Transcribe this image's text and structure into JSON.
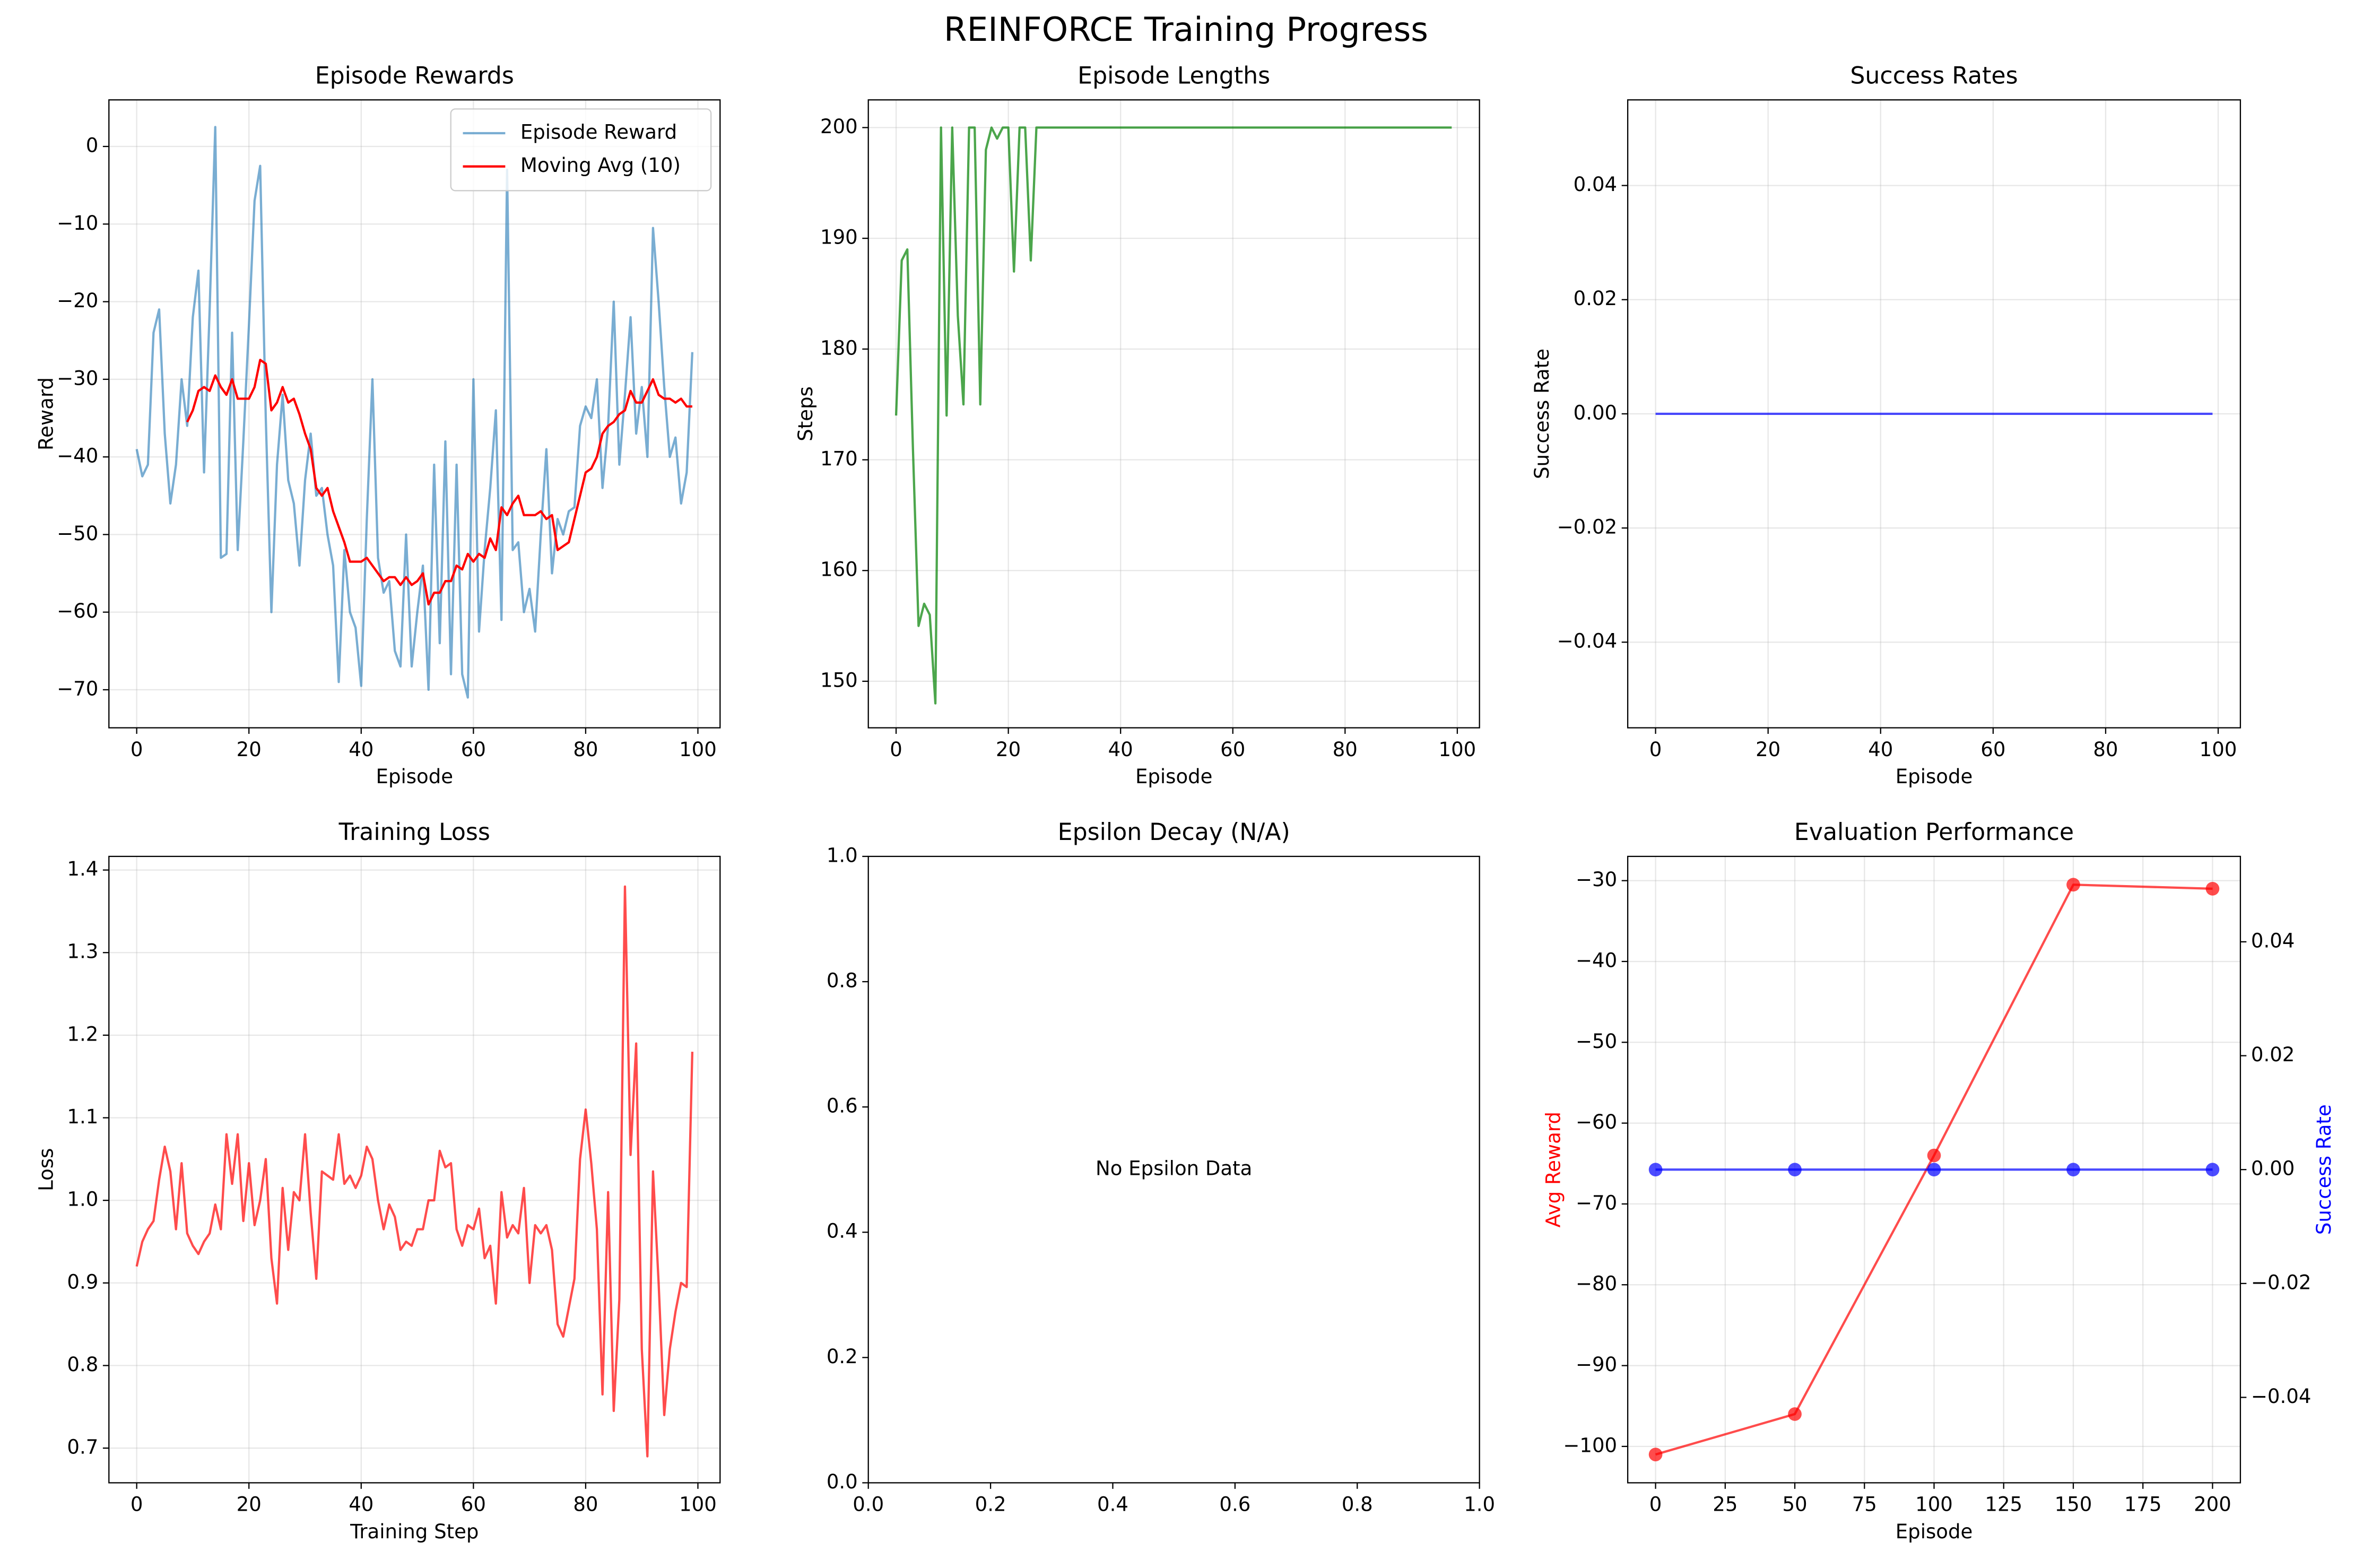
{
  "title": "REINFORCE Training Progress",
  "chart_data": [
    {
      "type": "line",
      "title": "Episode Rewards",
      "xlabel": "Episode",
      "ylabel": "Reward",
      "x": [
        0,
        1,
        2,
        3,
        4,
        5,
        6,
        7,
        8,
        9,
        10,
        11,
        12,
        13,
        14,
        15,
        16,
        17,
        18,
        19,
        20,
        21,
        22,
        23,
        24,
        25,
        26,
        27,
        28,
        29,
        30,
        31,
        32,
        33,
        34,
        35,
        36,
        37,
        38,
        39,
        40,
        41,
        42,
        43,
        44,
        45,
        46,
        47,
        48,
        49,
        50,
        51,
        52,
        53,
        54,
        55,
        56,
        57,
        58,
        59,
        60,
        61,
        62,
        63,
        64,
        65,
        66,
        67,
        68,
        69,
        70,
        71,
        72,
        73,
        74,
        75,
        76,
        77,
        78,
        79,
        80,
        81,
        82,
        83,
        84,
        85,
        86,
        87,
        88,
        89,
        90,
        91,
        92,
        93,
        94,
        95,
        96,
        97,
        98,
        99
      ],
      "series": [
        {
          "name": "Episode Reward",
          "color": "#1f77b4",
          "alpha": 0.6,
          "values": [
            -39,
            -42.5,
            -41,
            -24,
            -21,
            -37,
            -46,
            -41,
            -30,
            -36,
            -22,
            -16,
            -42,
            -21,
            2.5,
            -53,
            -52.5,
            -24,
            -52,
            -38,
            -23,
            -7,
            -2.5,
            -35,
            -60,
            -41,
            -32,
            -43,
            -46,
            -54,
            -43,
            -37,
            -45,
            -44,
            -50,
            -54,
            -69,
            -52,
            -60,
            -62,
            -69.5,
            -48,
            -30,
            -53,
            -57.5,
            -56,
            -65,
            -67,
            -50,
            -67,
            -60,
            -54,
            -70,
            -41,
            -64,
            -38,
            -68,
            -41,
            -68,
            -71,
            -30,
            -62.5,
            -52,
            -44,
            -34,
            -61,
            -3,
            -52,
            -51,
            -60,
            -57,
            -62.5,
            -50,
            -39,
            -55,
            -48,
            -50,
            -47,
            -46.5,
            -36,
            -33.5,
            -35,
            -30,
            -44,
            -36,
            -20,
            -41,
            -32,
            -22,
            -37,
            -31,
            -40,
            -10.5,
            -20,
            -31,
            -40,
            -37.5,
            -46,
            -42,
            -26.5
          ]
        },
        {
          "name": "Moving Avg (10)",
          "color": "red",
          "alpha": 1,
          "values": [
            null,
            null,
            null,
            null,
            null,
            null,
            null,
            null,
            null,
            -35.5,
            -34,
            -31.5,
            -31,
            -31.5,
            -29.5,
            -31,
            -32,
            -30,
            -32.5,
            -32.5,
            -32.5,
            -31,
            -27.5,
            -28,
            -34,
            -33,
            -31,
            -33,
            -32.5,
            -34.5,
            -37,
            -39,
            -44,
            -45,
            -44,
            -47,
            -49,
            -51,
            -53.5,
            -53.5,
            -53.5,
            -53,
            -54,
            -55,
            -56,
            -55.5,
            -55.5,
            -56.5,
            -55.5,
            -56.5,
            -56,
            -55,
            -59,
            -57.5,
            -57.5,
            -56,
            -56,
            -54,
            -54.5,
            -52.5,
            -53.5,
            -52.5,
            -53,
            -50.5,
            -52,
            -46.5,
            -47.5,
            -46,
            -45,
            -47.5,
            -47.5,
            -47.5,
            -47,
            -48,
            -47.5,
            -52,
            -51.5,
            -51,
            -48,
            -45,
            -42,
            -41.5,
            -40,
            -37,
            -36,
            -35.5,
            -34.5,
            -34,
            -31.5,
            -33,
            -33,
            -31.5,
            -30,
            -32,
            -32.5,
            -32.5,
            -33,
            -32.5,
            -33.5,
            -33.5
          ]
        }
      ],
      "xlim": [
        -4.95,
        103.95
      ],
      "ylim": [
        -74.9,
        6.0
      ],
      "xticks": [
        0,
        20,
        40,
        60,
        80,
        100
      ],
      "yticks": [
        {
          "value": -70,
          "label": "−70"
        },
        {
          "value": -60,
          "label": "−60"
        },
        {
          "value": -50,
          "label": "−50"
        },
        {
          "value": -40,
          "label": "−40"
        },
        {
          "value": -30,
          "label": "−30"
        },
        {
          "value": -20,
          "label": "−20"
        },
        {
          "value": -10,
          "label": "−10"
        },
        0
      ],
      "grid": true,
      "legend": "upper right"
    },
    {
      "type": "line",
      "title": "Episode Lengths",
      "xlabel": "Episode",
      "ylabel": "Steps",
      "x": [
        0,
        1,
        2,
        3,
        4,
        5,
        6,
        7,
        8,
        9,
        10,
        11,
        12,
        13,
        14,
        15,
        16,
        17,
        18,
        19,
        20,
        21,
        22,
        23,
        24,
        25,
        26,
        27,
        28,
        29,
        30,
        31,
        32,
        33,
        34,
        35,
        36,
        37,
        38,
        39,
        40,
        41,
        42,
        43,
        44,
        45,
        46,
        47,
        48,
        49,
        50,
        51,
        52,
        53,
        54,
        55,
        56,
        57,
        58,
        59,
        60,
        61,
        62,
        63,
        64,
        65,
        66,
        67,
        68,
        69,
        70,
        71,
        72,
        73,
        74,
        75,
        76,
        77,
        78,
        79,
        80,
        81,
        82,
        83,
        84,
        85,
        86,
        87,
        88,
        89,
        90,
        91,
        92,
        93,
        94,
        95,
        96,
        97,
        98,
        99
      ],
      "series": [
        {
          "color": "green",
          "alpha": 0.7,
          "values": [
            174,
            188,
            189,
            171,
            155,
            157,
            156,
            148,
            200,
            174,
            200,
            183,
            175,
            200,
            200,
            175,
            198,
            200,
            199,
            200,
            200,
            187,
            200,
            200,
            188,
            200,
            200,
            200,
            200,
            200,
            200,
            200,
            200,
            200,
            200,
            200,
            200,
            200,
            200,
            200,
            200,
            200,
            200,
            200,
            200,
            200,
            200,
            200,
            200,
            200,
            200,
            200,
            200,
            200,
            200,
            200,
            200,
            200,
            200,
            200,
            200,
            200,
            200,
            200,
            200,
            200,
            200,
            200,
            200,
            200,
            200,
            200,
            200,
            200,
            200,
            200,
            200,
            200,
            200,
            200,
            200,
            200,
            200,
            200,
            200,
            200,
            200,
            200,
            200,
            200,
            200,
            200,
            200,
            200,
            200,
            200,
            200,
            200,
            200,
            200
          ]
        }
      ],
      "xlim": [
        -4.95,
        103.95
      ],
      "ylim": [
        145.8,
        202.5
      ],
      "xticks": [
        0,
        20,
        40,
        60,
        80,
        100
      ],
      "yticks": [
        150,
        160,
        170,
        180,
        190,
        200
      ],
      "grid": true
    },
    {
      "type": "line",
      "title": "Success Rates",
      "xlabel": "Episode",
      "ylabel": "Success Rate",
      "x": [
        0,
        1,
        2,
        3,
        4,
        5,
        6,
        7,
        8,
        9,
        10,
        11,
        12,
        13,
        14,
        15,
        16,
        17,
        18,
        19,
        20,
        21,
        22,
        23,
        24,
        25,
        26,
        27,
        28,
        29,
        30,
        31,
        32,
        33,
        34,
        35,
        36,
        37,
        38,
        39,
        40,
        41,
        42,
        43,
        44,
        45,
        46,
        47,
        48,
        49,
        50,
        51,
        52,
        53,
        54,
        55,
        56,
        57,
        58,
        59,
        60,
        61,
        62,
        63,
        64,
        65,
        66,
        67,
        68,
        69,
        70,
        71,
        72,
        73,
        74,
        75,
        76,
        77,
        78,
        79,
        80,
        81,
        82,
        83,
        84,
        85,
        86,
        87,
        88,
        89,
        90,
        91,
        92,
        93,
        94,
        95,
        96,
        97,
        98,
        99
      ],
      "series": [
        {
          "color": "blue",
          "alpha": 0.7,
          "values": [
            0,
            0,
            0,
            0,
            0,
            0,
            0,
            0,
            0,
            0,
            0,
            0,
            0,
            0,
            0,
            0,
            0,
            0,
            0,
            0,
            0,
            0,
            0,
            0,
            0,
            0,
            0,
            0,
            0,
            0,
            0,
            0,
            0,
            0,
            0,
            0,
            0,
            0,
            0,
            0,
            0,
            0,
            0,
            0,
            0,
            0,
            0,
            0,
            0,
            0,
            0,
            0,
            0,
            0,
            0,
            0,
            0,
            0,
            0,
            0,
            0,
            0,
            0,
            0,
            0,
            0,
            0,
            0,
            0,
            0,
            0,
            0,
            0,
            0,
            0,
            0,
            0,
            0,
            0,
            0,
            0,
            0,
            0,
            0,
            0,
            0,
            0,
            0,
            0,
            0,
            0,
            0,
            0,
            0,
            0,
            0,
            0,
            0,
            0,
            0
          ]
        }
      ],
      "xlim": [
        -4.95,
        103.95
      ],
      "ylim": [
        -0.055,
        0.055
      ],
      "xticks": [
        0,
        20,
        40,
        60,
        80,
        100
      ],
      "yticks": [
        {
          "value": -0.04,
          "label": "−0.04"
        },
        {
          "value": -0.02,
          "label": "−0.02"
        },
        {
          "value": 0,
          "label": "0.00"
        },
        0.02,
        0.04
      ],
      "grid": true
    },
    {
      "type": "line",
      "title": "Training Loss",
      "xlabel": "Training Step",
      "ylabel": "Loss",
      "x": [
        0,
        1,
        2,
        3,
        4,
        5,
        6,
        7,
        8,
        9,
        10,
        11,
        12,
        13,
        14,
        15,
        16,
        17,
        18,
        19,
        20,
        21,
        22,
        23,
        24,
        25,
        26,
        27,
        28,
        29,
        30,
        31,
        32,
        33,
        34,
        35,
        36,
        37,
        38,
        39,
        40,
        41,
        42,
        43,
        44,
        45,
        46,
        47,
        48,
        49,
        50,
        51,
        52,
        53,
        54,
        55,
        56,
        57,
        58,
        59,
        60,
        61,
        62,
        63,
        64,
        65,
        66,
        67,
        68,
        69,
        70,
        71,
        72,
        73,
        74,
        75,
        76,
        77,
        78,
        79,
        80,
        81,
        82,
        83,
        84,
        85,
        86,
        87,
        88,
        89,
        90,
        91,
        92,
        93,
        94,
        95,
        96,
        97,
        98,
        99
      ],
      "series": [
        {
          "color": "red",
          "alpha": 0.7,
          "values": [
            0.92,
            0.95,
            0.965,
            0.975,
            1.025,
            1.065,
            1.035,
            0.965,
            1.045,
            0.96,
            0.945,
            0.935,
            0.95,
            0.96,
            0.995,
            0.965,
            1.08,
            1.02,
            1.08,
            0.975,
            1.045,
            0.97,
            1.0,
            1.05,
            0.93,
            0.875,
            1.015,
            0.94,
            1.01,
            1.0,
            1.08,
            0.985,
            0.905,
            1.035,
            1.03,
            1.025,
            1.08,
            1.02,
            1.03,
            1.015,
            1.03,
            1.065,
            1.05,
            1.0,
            0.965,
            0.995,
            0.98,
            0.94,
            0.95,
            0.945,
            0.965,
            0.965,
            1.0,
            1.0,
            1.06,
            1.04,
            1.045,
            0.965,
            0.945,
            0.97,
            0.965,
            0.99,
            0.93,
            0.945,
            0.875,
            1.01,
            0.955,
            0.97,
            0.96,
            1.015,
            0.9,
            0.97,
            0.96,
            0.97,
            0.94,
            0.85,
            0.835,
            0.87,
            0.905,
            1.05,
            1.11,
            1.045,
            0.965,
            0.765,
            1.01,
            0.745,
            0.88,
            1.38,
            1.055,
            1.19,
            0.82,
            0.69,
            1.035,
            0.9,
            0.74,
            0.82,
            0.865,
            0.9,
            0.895,
            1.18
          ]
        }
      ],
      "xlim": [
        -4.95,
        103.95
      ],
      "ylim": [
        0.658,
        1.4165
      ],
      "xticks": [
        0,
        20,
        40,
        60,
        80,
        100
      ],
      "yticks": [
        0.7,
        0.8,
        0.9,
        {
          "value": 1,
          "label": "1.0"
        },
        1.1,
        1.2,
        1.3,
        1.4
      ],
      "grid": true
    },
    {
      "type": "line",
      "title": "Epsilon Decay (N/A)",
      "annotation": "No Epsilon Data",
      "series": [],
      "xlim": [
        0,
        1
      ],
      "ylim": [
        0,
        1
      ],
      "xticks": [
        {
          "value": 0,
          "label": "0.0"
        },
        0.2,
        0.4,
        0.6,
        0.8,
        {
          "value": 1,
          "label": "1.0"
        }
      ],
      "yticks": [
        {
          "value": 0,
          "label": "0.0"
        },
        0.2,
        0.4,
        0.6,
        0.8,
        {
          "value": 1,
          "label": "1.0"
        }
      ],
      "grid": false
    },
    {
      "type": "line",
      "title": "Evaluation Performance",
      "xlabel": "Episode",
      "ylabel": "Avg Reward",
      "y2label": "Success Rate",
      "ylabel_color": "red",
      "y2label_color": "blue",
      "x": [
        0,
        50,
        100,
        150,
        200
      ],
      "series": [
        {
          "color": "red",
          "alpha": 0.7,
          "marker": "o",
          "values": [
            -101,
            -96,
            -64,
            -30.5,
            -31
          ]
        },
        {
          "color": "blue",
          "alpha": 0.7,
          "marker": "o",
          "axis": "y2",
          "values": [
            0,
            0,
            0,
            0,
            0
          ]
        }
      ],
      "xlim": [
        -10,
        210
      ],
      "ylim": [
        -104.5,
        -27.0
      ],
      "y2lim": [
        -0.055,
        0.055
      ],
      "xticks": [
        0,
        25,
        50,
        75,
        100,
        125,
        150,
        175,
        200
      ],
      "yticks": [
        {
          "value": -100,
          "label": "−100"
        },
        {
          "value": -90,
          "label": "−90"
        },
        {
          "value": -80,
          "label": "−80"
        },
        {
          "value": -70,
          "label": "−70"
        },
        {
          "value": -60,
          "label": "−60"
        },
        {
          "value": -50,
          "label": "−50"
        },
        {
          "value": -40,
          "label": "−40"
        },
        {
          "value": -30,
          "label": "−30"
        }
      ],
      "y2ticks": [
        {
          "value": -0.04,
          "label": "−0.04"
        },
        {
          "value": -0.02,
          "label": "−0.02"
        },
        {
          "value": 0,
          "label": "0.00"
        },
        0.02,
        0.04
      ],
      "grid": true
    }
  ]
}
